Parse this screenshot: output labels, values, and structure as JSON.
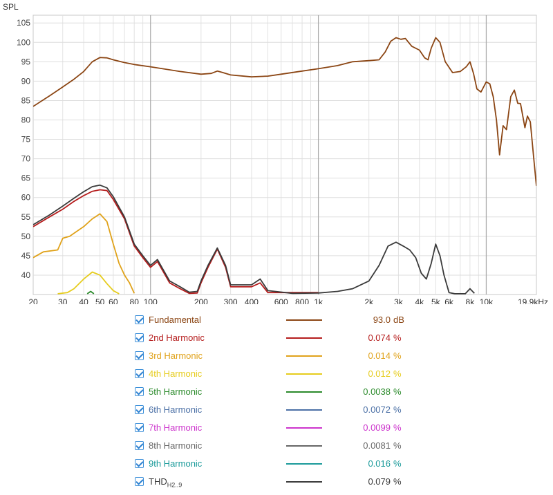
{
  "chart_data": {
    "type": "line",
    "ylabel": "SPL",
    "x_scale": "log",
    "xlim": [
      20,
      19900
    ],
    "ylim": [
      35,
      107
    ],
    "x_ticks": [
      20,
      30,
      40,
      50,
      60,
      80,
      100,
      200,
      300,
      400,
      600,
      800,
      1000,
      2000,
      3000,
      4000,
      5000,
      6000,
      8000,
      10000,
      19900
    ],
    "x_tick_labels": [
      "20",
      "30",
      "40",
      "50",
      "60",
      "80",
      "100",
      "200",
      "300",
      "400",
      "600",
      "800",
      "1k",
      "2k",
      "3k",
      "4k",
      "5k",
      "6k",
      "8k",
      "10k",
      "19.9kHz"
    ],
    "y_ticks": [
      40,
      45,
      50,
      55,
      60,
      65,
      70,
      75,
      80,
      85,
      90,
      95,
      100,
      105
    ],
    "grid": true,
    "legend_position": "bottom",
    "series": [
      {
        "name": "Fundamental",
        "color": "#8b4513",
        "value": "93.0",
        "unit": "dB",
        "points": [
          [
            20,
            83.5
          ],
          [
            25,
            86.2
          ],
          [
            30,
            88.5
          ],
          [
            35,
            90.5
          ],
          [
            40,
            92.5
          ],
          [
            45,
            95
          ],
          [
            50,
            96.1
          ],
          [
            55,
            96
          ],
          [
            60,
            95.5
          ],
          [
            70,
            94.8
          ],
          [
            80,
            94.3
          ],
          [
            100,
            93.7
          ],
          [
            150,
            92.5
          ],
          [
            200,
            91.8
          ],
          [
            230,
            92
          ],
          [
            250,
            92.6
          ],
          [
            270,
            92.2
          ],
          [
            300,
            91.6
          ],
          [
            400,
            91.1
          ],
          [
            500,
            91.3
          ],
          [
            600,
            91.8
          ],
          [
            800,
            92.6
          ],
          [
            1000,
            93.2
          ],
          [
            1300,
            94
          ],
          [
            1600,
            95
          ],
          [
            2000,
            95.3
          ],
          [
            2300,
            95.5
          ],
          [
            2500,
            97.5
          ],
          [
            2700,
            100.3
          ],
          [
            2900,
            101.2
          ],
          [
            3100,
            100.8
          ],
          [
            3300,
            101
          ],
          [
            3600,
            99
          ],
          [
            4000,
            98
          ],
          [
            4300,
            96
          ],
          [
            4500,
            95.5
          ],
          [
            4700,
            98.5
          ],
          [
            5000,
            101.2
          ],
          [
            5300,
            100
          ],
          [
            5700,
            95
          ],
          [
            6300,
            92.2
          ],
          [
            7000,
            92.5
          ],
          [
            7600,
            93.7
          ],
          [
            8000,
            95
          ],
          [
            8400,
            92
          ],
          [
            8800,
            88
          ],
          [
            9300,
            87.2
          ],
          [
            10000,
            89.8
          ],
          [
            10500,
            89.3
          ],
          [
            11000,
            86
          ],
          [
            11500,
            80
          ],
          [
            12000,
            71
          ],
          [
            12600,
            78.5
          ],
          [
            13200,
            77.5
          ],
          [
            14000,
            86
          ],
          [
            14700,
            87.7
          ],
          [
            15400,
            84.3
          ],
          [
            16000,
            84.2
          ],
          [
            17000,
            78
          ],
          [
            17600,
            81
          ],
          [
            18300,
            79.5
          ],
          [
            19200,
            70
          ],
          [
            19900,
            63
          ]
        ]
      },
      {
        "name": "2nd Harmonic",
        "color": "#b51c1c",
        "value": "0.074",
        "unit": "%",
        "points": [
          [
            20,
            52.5
          ],
          [
            25,
            55
          ],
          [
            30,
            57
          ],
          [
            35,
            59
          ],
          [
            40,
            60.5
          ],
          [
            45,
            61.6
          ],
          [
            50,
            62
          ],
          [
            55,
            61.8
          ],
          [
            60,
            59.5
          ],
          [
            70,
            54.5
          ],
          [
            80,
            47.5
          ],
          [
            90,
            44.5
          ],
          [
            100,
            42
          ],
          [
            110,
            43.5
          ],
          [
            130,
            38
          ],
          [
            150,
            36.5
          ],
          [
            170,
            35.3
          ],
          [
            190,
            35.4
          ],
          [
            200,
            38
          ],
          [
            220,
            42
          ],
          [
            250,
            46.7
          ],
          [
            280,
            42
          ],
          [
            300,
            37
          ],
          [
            400,
            37
          ],
          [
            450,
            38
          ],
          [
            500,
            35.5
          ],
          [
            1000,
            35.5
          ]
        ]
      },
      {
        "name": "3rd Harmonic",
        "color": "#e0a21a",
        "value": "0.014",
        "unit": "%",
        "points": [
          [
            20,
            44.5
          ],
          [
            23,
            46
          ],
          [
            28,
            46.5
          ],
          [
            30,
            49.5
          ],
          [
            33,
            50
          ],
          [
            37,
            51.5
          ],
          [
            40,
            52.5
          ],
          [
            45,
            54.5
          ],
          [
            50,
            55.8
          ],
          [
            55,
            53.8
          ],
          [
            60,
            48
          ],
          [
            65,
            43
          ],
          [
            70,
            40
          ],
          [
            75,
            38
          ],
          [
            80,
            35.3
          ]
        ]
      },
      {
        "name": "4th Harmonic",
        "color": "#e6cc1c",
        "value": "0.012",
        "unit": "%",
        "points": [
          [
            28,
            35.2
          ],
          [
            32,
            35.5
          ],
          [
            35,
            36.5
          ],
          [
            40,
            39
          ],
          [
            45,
            40.8
          ],
          [
            50,
            40
          ],
          [
            55,
            37.8
          ],
          [
            60,
            36
          ],
          [
            65,
            35.2
          ]
        ]
      },
      {
        "name": "5th Harmonic",
        "color": "#2a8a2a",
        "value": "0.0038",
        "unit": "%",
        "points": [
          [
            42,
            35.2
          ],
          [
            44,
            35.8
          ],
          [
            46,
            35.2
          ]
        ]
      },
      {
        "name": "6th Harmonic",
        "color": "#4a6fa5",
        "value": "0.0072",
        "unit": "%",
        "points": []
      },
      {
        "name": "7th Harmonic",
        "color": "#cc33cc",
        "value": "0.0099",
        "unit": "%",
        "points": []
      },
      {
        "name": "8th Harmonic",
        "color": "#666666",
        "value": "0.0081",
        "unit": "%",
        "points": []
      },
      {
        "name": "9th Harmonic",
        "color": "#1a9a9a",
        "value": "0.016",
        "unit": "%",
        "points": []
      },
      {
        "name": "THD",
        "name_sub": "H2..9",
        "color": "#3a3a3a",
        "value": "0.079",
        "unit": "%",
        "points": [
          [
            20,
            53
          ],
          [
            25,
            55.5
          ],
          [
            30,
            57.8
          ],
          [
            35,
            59.8
          ],
          [
            40,
            61.5
          ],
          [
            45,
            62.8
          ],
          [
            50,
            63.2
          ],
          [
            55,
            62.5
          ],
          [
            60,
            60.2
          ],
          [
            70,
            55
          ],
          [
            80,
            48
          ],
          [
            90,
            45
          ],
          [
            100,
            42.5
          ],
          [
            110,
            44
          ],
          [
            130,
            38.5
          ],
          [
            150,
            37
          ],
          [
            170,
            35.6
          ],
          [
            190,
            35.8
          ],
          [
            200,
            38.5
          ],
          [
            220,
            42.5
          ],
          [
            250,
            47
          ],
          [
            280,
            42.5
          ],
          [
            300,
            37.5
          ],
          [
            400,
            37.5
          ],
          [
            450,
            39
          ],
          [
            500,
            36
          ],
          [
            700,
            35.3
          ],
          [
            1000,
            35.4
          ],
          [
            1300,
            35.8
          ],
          [
            1600,
            36.5
          ],
          [
            2000,
            38.5
          ],
          [
            2300,
            42.5
          ],
          [
            2600,
            47.5
          ],
          [
            2900,
            48.5
          ],
          [
            3200,
            47.5
          ],
          [
            3500,
            46.5
          ],
          [
            3800,
            44.5
          ],
          [
            4100,
            40.5
          ],
          [
            4400,
            39
          ],
          [
            4700,
            43
          ],
          [
            5000,
            48
          ],
          [
            5300,
            45
          ],
          [
            5600,
            40
          ],
          [
            6000,
            35.5
          ],
          [
            6500,
            35.2
          ],
          [
            7500,
            35.2
          ],
          [
            8000,
            36.5
          ],
          [
            8500,
            35.3
          ]
        ]
      }
    ]
  }
}
